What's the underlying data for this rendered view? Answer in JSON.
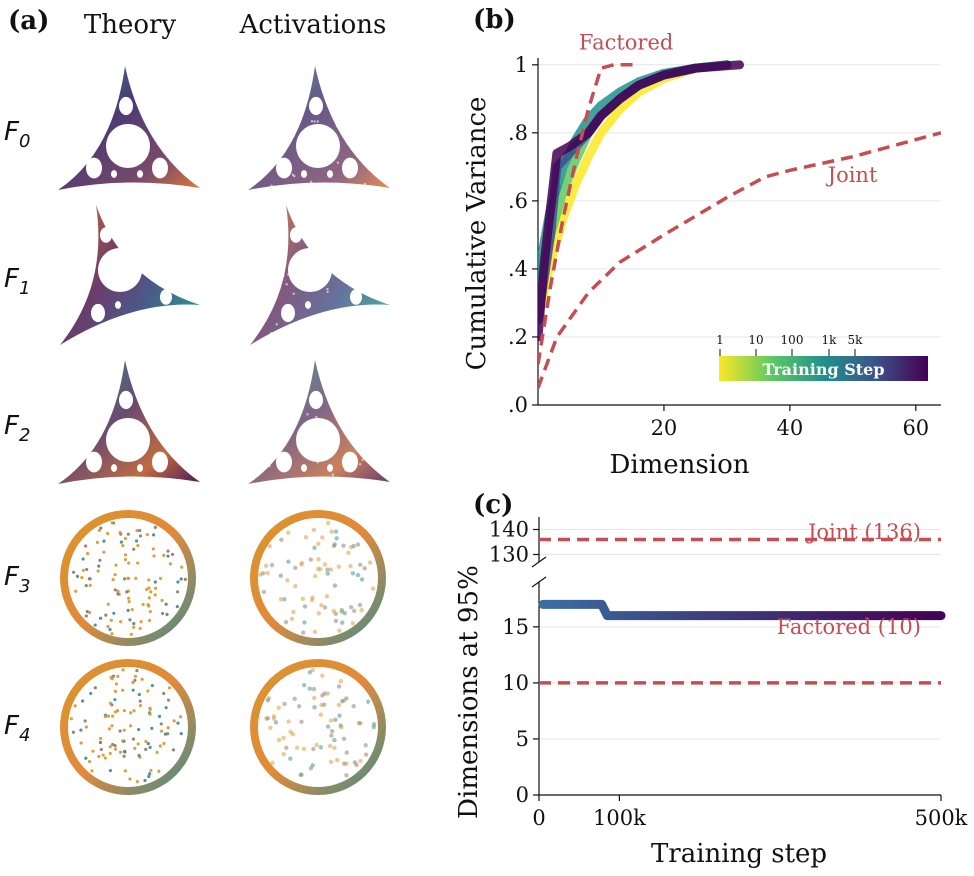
{
  "panel_a": {
    "letter": "(a)",
    "col_theory": "Theory",
    "col_activations": "Activations",
    "rows": [
      {
        "base": "F",
        "sub": "0",
        "shape": "triangle",
        "orient": "up"
      },
      {
        "base": "F",
        "sub": "1",
        "shape": "triangle",
        "orient": "right"
      },
      {
        "base": "F",
        "sub": "2",
        "shape": "triangle",
        "orient": "up"
      },
      {
        "base": "F",
        "sub": "3",
        "shape": "disk",
        "orient": "none"
      },
      {
        "base": "F",
        "sub": "4",
        "shape": "disk",
        "orient": "none"
      }
    ]
  },
  "chart_data": [
    {
      "panel": "(b)",
      "type": "line",
      "title": "",
      "xlabel": "Dimension",
      "ylabel": "Cumulative Variance",
      "xlim": [
        0,
        64
      ],
      "ylim": [
        0,
        1.02
      ],
      "xticks": [
        20,
        40,
        60
      ],
      "yticks": [
        0,
        0.2,
        0.4,
        0.6,
        0.8,
        1.0
      ],
      "ytick_labels": [
        ".0",
        ".2",
        ".4",
        ".6",
        ".8",
        "1"
      ],
      "grid": "horizontal",
      "series": [
        {
          "name": "Factored",
          "style": "dashed",
          "color": "#c44e52",
          "x": [
            0,
            2,
            4,
            6,
            8,
            10,
            12,
            14,
            15
          ],
          "y": [
            0.12,
            0.35,
            0.55,
            0.72,
            0.87,
            0.99,
            1.0,
            1.0,
            1.0
          ]
        },
        {
          "name": "Joint",
          "style": "dashed",
          "color": "#c44e52",
          "x": [
            0,
            3,
            8,
            13,
            20,
            30,
            36,
            40,
            50,
            64
          ],
          "y": [
            0.05,
            0.2,
            0.33,
            0.42,
            0.5,
            0.61,
            0.67,
            0.69,
            0.73,
            0.8
          ]
        },
        {
          "name": "",
          "style": "solid",
          "color": "#fde725",
          "x": [
            0,
            2,
            4,
            6,
            8,
            10,
            13,
            16,
            20,
            25,
            30
          ],
          "y": [
            0.25,
            0.42,
            0.55,
            0.65,
            0.73,
            0.8,
            0.87,
            0.92,
            0.96,
            0.99,
            1.0
          ]
        },
        {
          "name": "",
          "style": "solid",
          "color": "#5ec962",
          "x": [
            0,
            2,
            4,
            6,
            8,
            10,
            13,
            16,
            20,
            25,
            30
          ],
          "y": [
            0.3,
            0.5,
            0.63,
            0.72,
            0.8,
            0.85,
            0.9,
            0.94,
            0.97,
            0.99,
            1.0
          ]
        },
        {
          "name": "",
          "style": "solid",
          "color": "#21918c",
          "x": [
            0,
            2,
            4,
            6,
            8,
            10,
            13,
            16,
            20,
            25,
            30
          ],
          "y": [
            0.38,
            0.58,
            0.7,
            0.78,
            0.84,
            0.88,
            0.92,
            0.95,
            0.975,
            0.99,
            1.0
          ]
        },
        {
          "name": "",
          "style": "solid",
          "color": "#3b528b",
          "x": [
            0,
            2,
            3,
            5,
            8,
            10,
            13,
            16,
            20,
            25,
            30
          ],
          "y": [
            0.25,
            0.5,
            0.7,
            0.74,
            0.8,
            0.85,
            0.9,
            0.94,
            0.97,
            0.99,
            1.0
          ]
        },
        {
          "name": "",
          "style": "solid",
          "color": "#440154",
          "x": [
            0,
            1,
            3,
            5,
            8,
            10,
            13,
            16,
            20,
            25,
            32
          ],
          "y": [
            0.2,
            0.42,
            0.74,
            0.76,
            0.8,
            0.85,
            0.9,
            0.94,
            0.97,
            0.99,
            1.0
          ]
        }
      ],
      "annotations": [
        {
          "text": "Factored",
          "x": 6.5,
          "y": 1.045
        },
        {
          "text": "Joint",
          "x": 46,
          "y": 0.655
        }
      ],
      "colorbar": {
        "label": "Training Step",
        "ticks": [
          "1",
          "10",
          "100",
          "1k",
          "5k"
        ],
        "colors": [
          "#fde725",
          "#5ec962",
          "#21918c",
          "#3b528b",
          "#440154"
        ]
      }
    },
    {
      "panel": "(c)",
      "type": "line",
      "title": "",
      "xlabel": "Training step",
      "ylabel": "Dimensions at 95%",
      "xlim": [
        0,
        500000
      ],
      "xticks": [
        0,
        100000,
        500000
      ],
      "xtick_labels": [
        "0",
        "100k",
        "500k"
      ],
      "broken_axis": true,
      "upper_ylim": [
        127,
        145
      ],
      "upper_yticks": [
        130,
        140
      ],
      "lower_ylim": [
        0,
        19
      ],
      "lower_yticks": [
        0,
        5,
        10,
        15
      ],
      "grid": "horizontal",
      "series": [
        {
          "name": "Joint (136)",
          "style": "dashed",
          "color": "#c44e52",
          "x": [
            0,
            500000
          ],
          "y": [
            136,
            136
          ]
        },
        {
          "name": "Factored (10)",
          "style": "dashed",
          "color": "#c44e52",
          "x": [
            0,
            500000
          ],
          "y": [
            10,
            10
          ]
        },
        {
          "name": "",
          "style": "solid",
          "color": "#440154",
          "x": [
            5000,
            20000,
            40000,
            60000,
            70000,
            78000,
            85000,
            150000,
            300000,
            500000
          ],
          "y": [
            17,
            17,
            17,
            17,
            17,
            17,
            16,
            16,
            16,
            16
          ]
        }
      ],
      "annotations": [
        {
          "text": "Joint (136)",
          "x": 475000,
          "y": 139
        },
        {
          "text": "Factored (10)",
          "x": 475000,
          "y": 15
        }
      ]
    }
  ]
}
